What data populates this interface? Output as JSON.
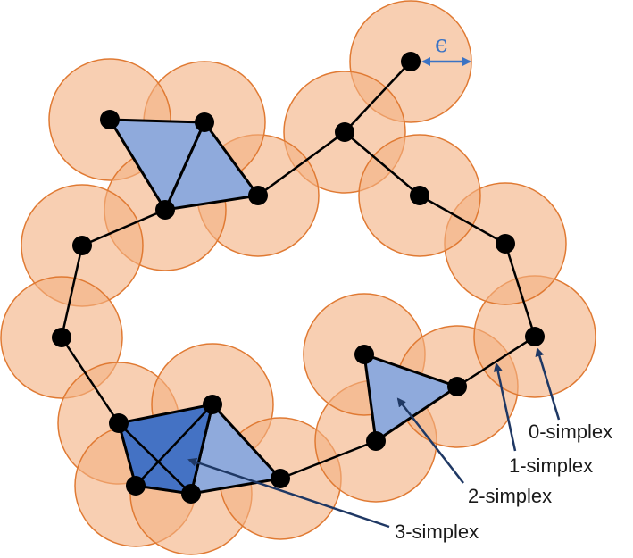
{
  "diagram": {
    "epsilon_symbol": "ϵ",
    "labels": {
      "zero_simplex": "0-simplex",
      "one_simplex": "1-simplex",
      "two_simplex": "2-simplex",
      "three_simplex": "3-simplex"
    },
    "colors": {
      "ball_fill": "#f4b183",
      "ball_stroke": "#e07a33",
      "simplex_light": "#8faadc",
      "simplex_dark": "#4472c4",
      "vertex": "#000000",
      "arrow": "#1f3864",
      "epsilon": "#3b73c4"
    }
  }
}
